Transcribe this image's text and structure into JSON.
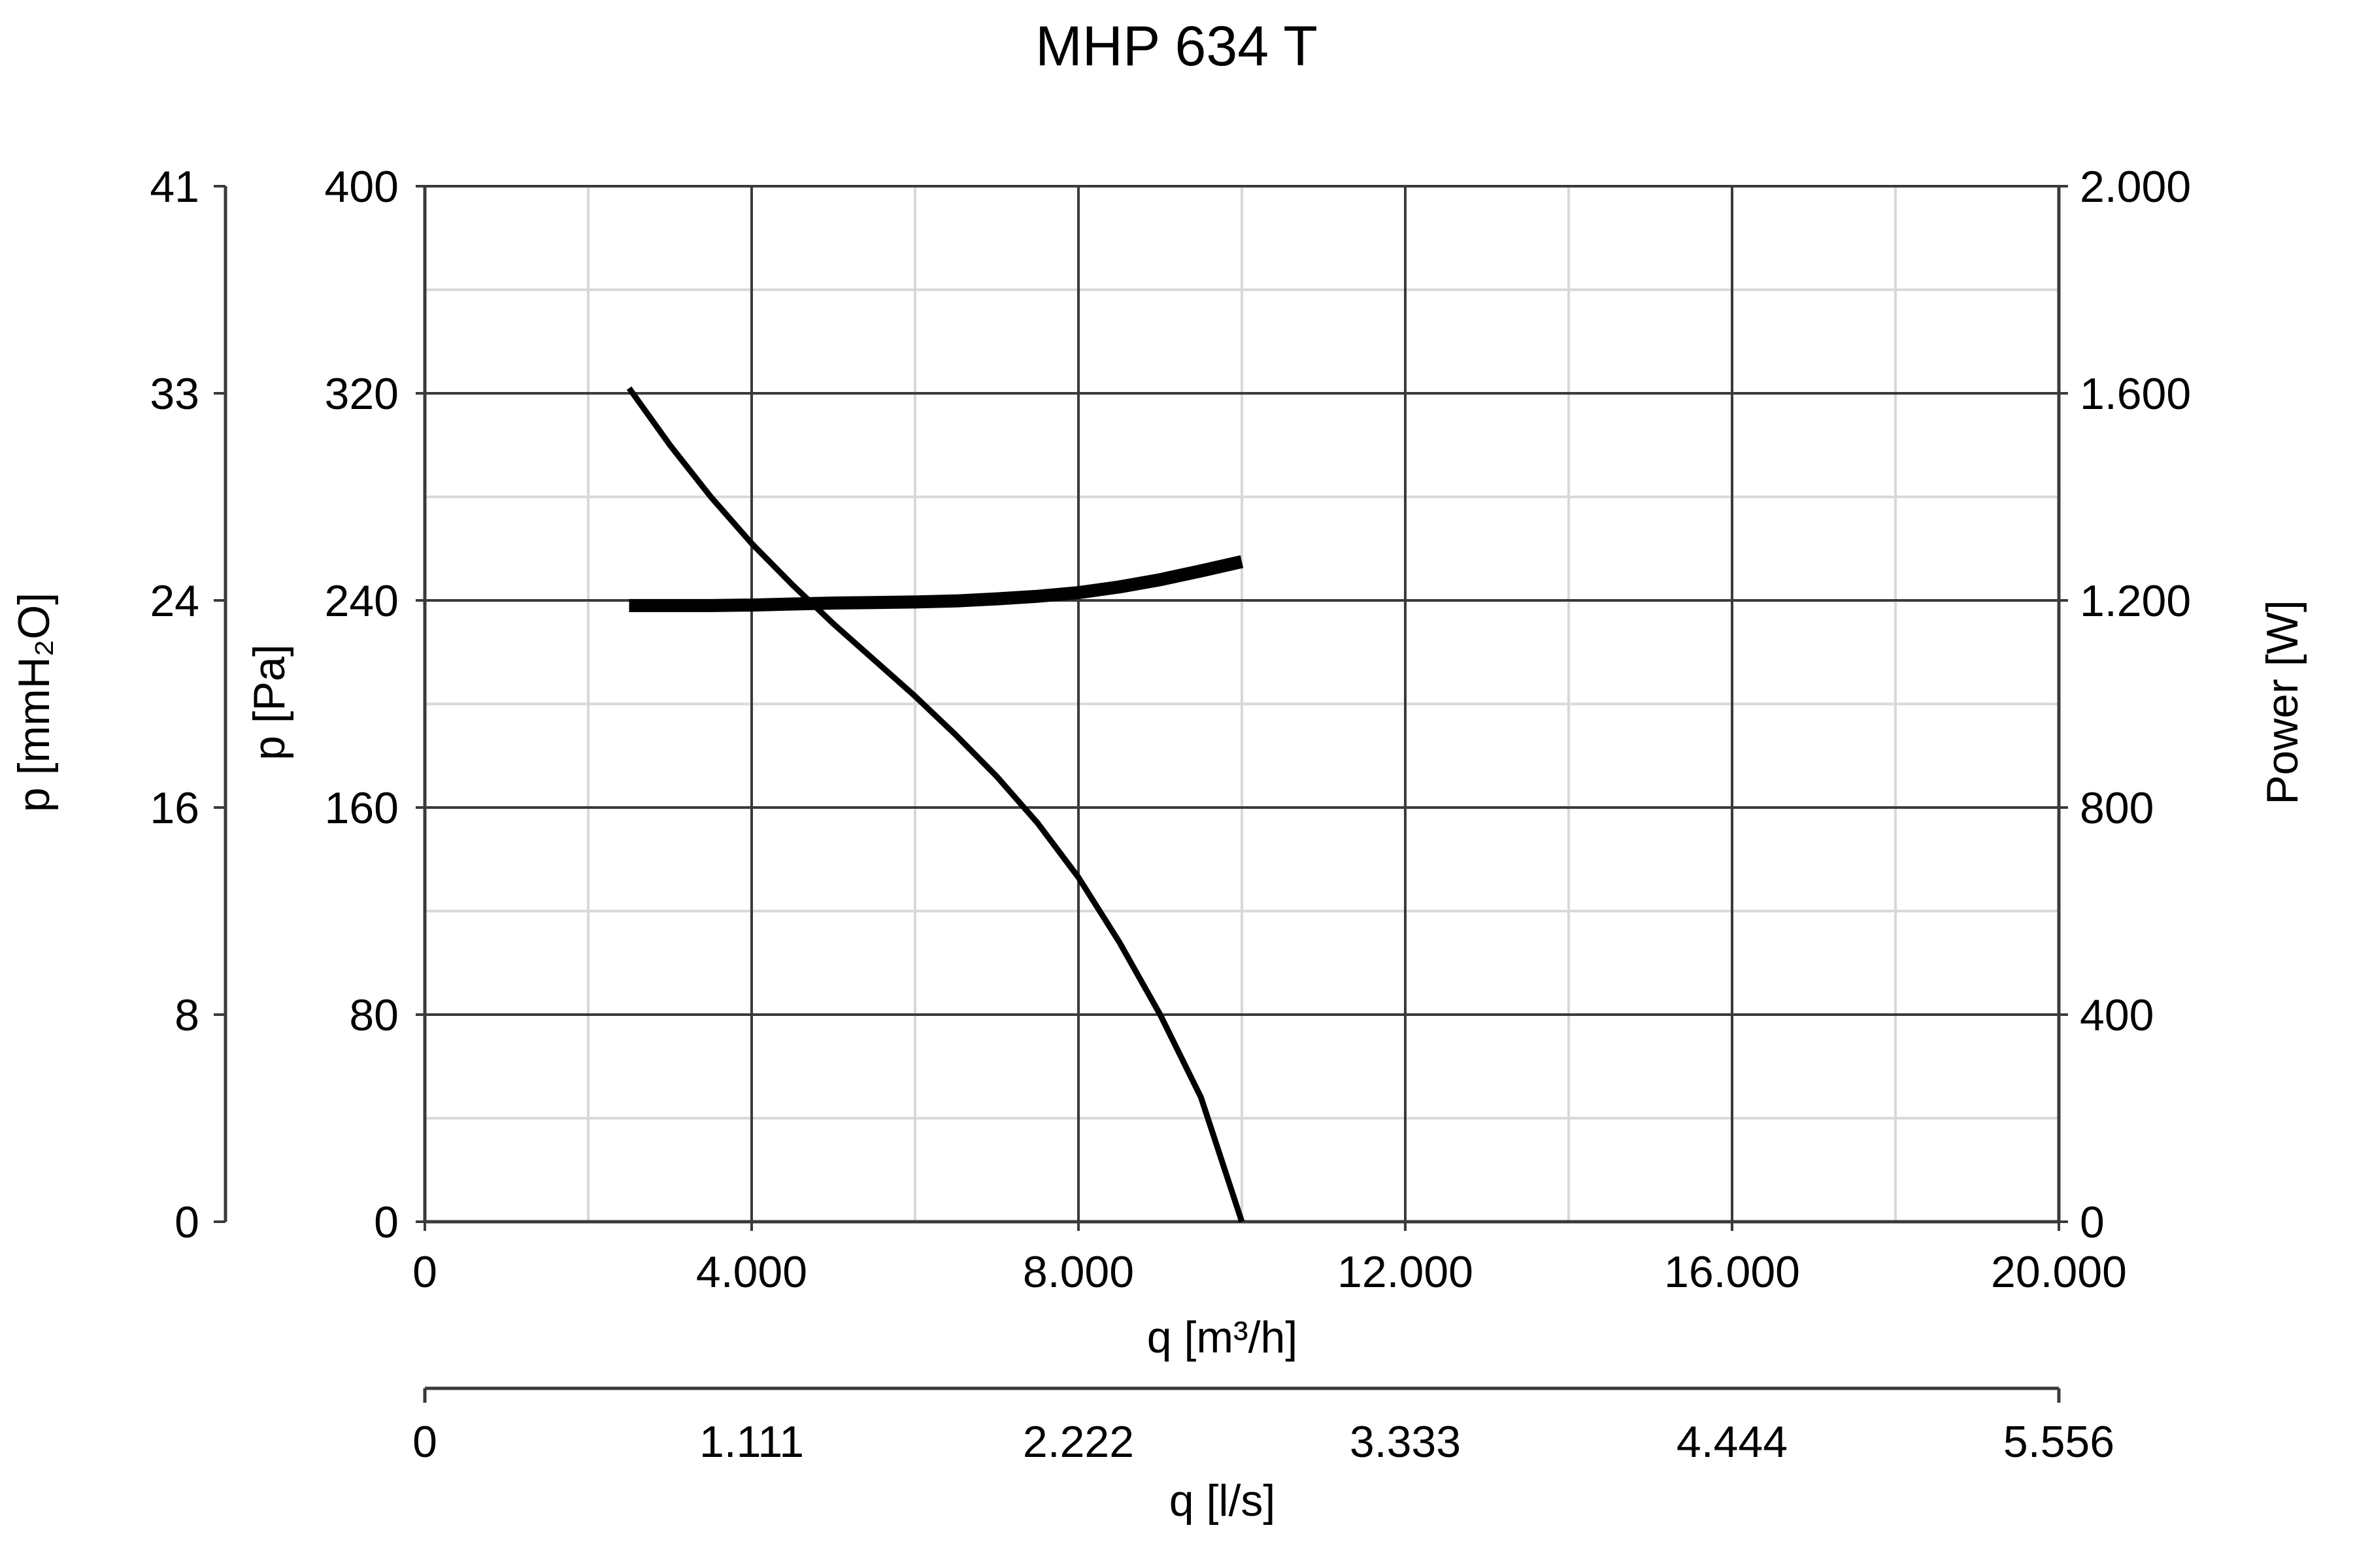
{
  "chart_data": {
    "type": "line",
    "title": "MHP 634 T",
    "xlabel": "q [m³/h]",
    "xlim": [
      0,
      20000
    ],
    "x_ticks": [
      "0",
      "4.000",
      "8.000",
      "12.000",
      "16.000",
      "20.000"
    ],
    "x2label": "q [l/s]",
    "x2lim": [
      0,
      5.556
    ],
    "x2_ticks": [
      "0",
      "1.111",
      "2.222",
      "3.333",
      "4.444",
      "5.556"
    ],
    "ylabel": "p [Pa]",
    "ylim": [
      0,
      400
    ],
    "y_ticks": [
      "0",
      "80",
      "160",
      "240",
      "320",
      "400"
    ],
    "y2label": "p [mmH₂O]",
    "y2lim": [
      0,
      41
    ],
    "y2_ticks": [
      "0",
      "8",
      "16",
      "24",
      "33",
      "41"
    ],
    "y3label": "Power [W]",
    "y3lim": [
      0,
      2000
    ],
    "y3_ticks": [
      "0",
      "400",
      "800",
      "1.200",
      "1.600",
      "2.000"
    ],
    "grid": true,
    "series": [
      {
        "axis": "pressure",
        "color": "#000000",
        "x": [
          2500,
          3000,
          3500,
          4000,
          4500,
          5000,
          5500,
          6000,
          6500,
          7000,
          7500,
          8000,
          8500,
          9000,
          9500,
          10000
        ],
        "y": [
          322,
          300,
          280,
          262,
          246,
          231,
          217,
          203,
          188,
          172,
          154,
          133,
          108,
          80,
          48,
          0
        ]
      },
      {
        "axis": "power",
        "color": "#000000",
        "x": [
          2500,
          3000,
          3500,
          4000,
          4500,
          5000,
          5500,
          6000,
          6500,
          7000,
          7500,
          8000,
          8500,
          9000,
          9500,
          10000
        ],
        "y": [
          1190,
          1190,
          1190,
          1191,
          1193,
          1195,
          1196,
          1197,
          1199,
          1203,
          1208,
          1215,
          1226,
          1240,
          1257,
          1275
        ]
      }
    ]
  }
}
